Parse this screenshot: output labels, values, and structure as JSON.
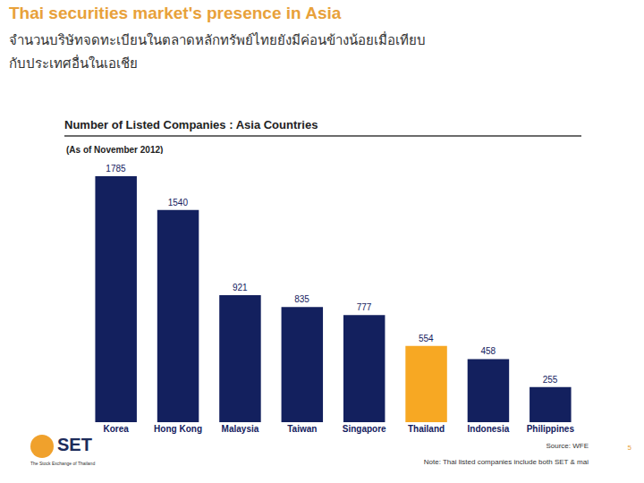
{
  "header": {
    "title": "Thai securities market's presence in Asia",
    "subtitle": [
      "จำนวนบริษัทจดทะเบียนในตลาดหลักทรัพย์ไทยยังมีค่อนข้างน้อยเมื่อเทียบ",
      "กับประเทศอื่นในเอเชีย"
    ]
  },
  "chart_data": {
    "type": "bar",
    "title": "Number of Listed Companies : Asia Countries",
    "subtitle": "(As of November 2012)",
    "categories": [
      "Korea",
      "Hong Kong",
      "Malaysia",
      "Taiwan",
      "Singapore",
      "Thailand",
      "Indonesia",
      "Philippines"
    ],
    "values": [
      1785,
      1540,
      921,
      835,
      777,
      554,
      458,
      255
    ],
    "colors": [
      "#13205e",
      "#13205e",
      "#13205e",
      "#13205e",
      "#13205e",
      "#f7a823",
      "#13205e",
      "#13205e"
    ],
    "ylim": [
      0,
      1785
    ],
    "grid": false,
    "data_labels": true,
    "tick_labels": "x"
  },
  "footer": {
    "logo_text": "SET",
    "logo_subtext": "The Stock Exchange of Thailand",
    "source": "Source: WFE",
    "note": "Note: Thai listed companies include both SET & mai",
    "page": 5
  }
}
